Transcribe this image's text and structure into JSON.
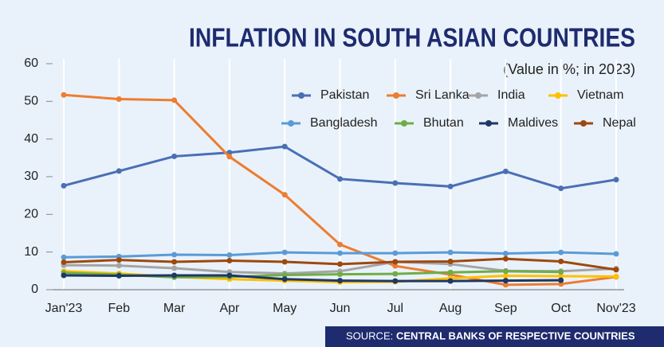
{
  "chart_data": {
    "type": "line",
    "title": "INFLATION IN SOUTH ASIAN COUNTRIES",
    "subtitle": "(Value in %; in 2023)",
    "source_label": "SOURCE:",
    "source": "CENTRAL BANKS OF RESPECTIVE COUNTRIES",
    "categories": [
      "Jan'23",
      "Feb",
      "Mar",
      "Apr",
      "May",
      "Jun",
      "Jul",
      "Aug",
      "Sep",
      "Oct",
      "Nov'23"
    ],
    "ylim": [
      0,
      60
    ],
    "yticks": [
      0,
      10,
      20,
      30,
      40,
      50,
      60
    ],
    "series": [
      {
        "name": "Pakistan",
        "color": "#4a6fb5",
        "values": [
          27.6,
          31.5,
          35.4,
          36.4,
          38.0,
          29.4,
          28.3,
          27.4,
          31.4,
          26.9,
          29.2
        ]
      },
      {
        "name": "Sri Lanka",
        "color": "#ed7d31",
        "values": [
          51.7,
          50.6,
          50.3,
          35.3,
          25.2,
          12.0,
          6.3,
          4.0,
          1.3,
          1.5,
          3.4
        ]
      },
      {
        "name": "India",
        "color": "#a5a5a5",
        "values": [
          6.5,
          6.4,
          5.7,
          4.7,
          4.3,
          4.9,
          7.4,
          6.8,
          5.0,
          4.9,
          5.6
        ]
      },
      {
        "name": "Vietnam",
        "color": "#ffc000",
        "values": [
          4.9,
          4.3,
          3.4,
          2.8,
          2.4,
          2.0,
          2.1,
          3.0,
          3.7,
          3.6,
          3.5
        ]
      },
      {
        "name": "Bangladesh",
        "color": "#5b9bd5",
        "values": [
          8.6,
          8.8,
          9.3,
          9.2,
          9.9,
          9.7,
          9.7,
          9.9,
          9.6,
          9.9,
          9.5
        ]
      },
      {
        "name": "Bhutan",
        "color": "#70ad47",
        "values": [
          4.5,
          4.0,
          3.3,
          3.4,
          3.9,
          4.1,
          4.2,
          4.6,
          4.9,
          4.7,
          null
        ]
      },
      {
        "name": "Maldives",
        "color": "#1f3864",
        "values": [
          3.8,
          3.7,
          3.8,
          3.8,
          2.8,
          2.4,
          2.3,
          2.3,
          2.4,
          2.5,
          null
        ]
      },
      {
        "name": "Nepal",
        "color": "#9e480e",
        "values": [
          7.3,
          7.9,
          7.4,
          7.7,
          7.4,
          6.8,
          7.4,
          7.5,
          8.2,
          7.5,
          5.3
        ]
      }
    ]
  }
}
